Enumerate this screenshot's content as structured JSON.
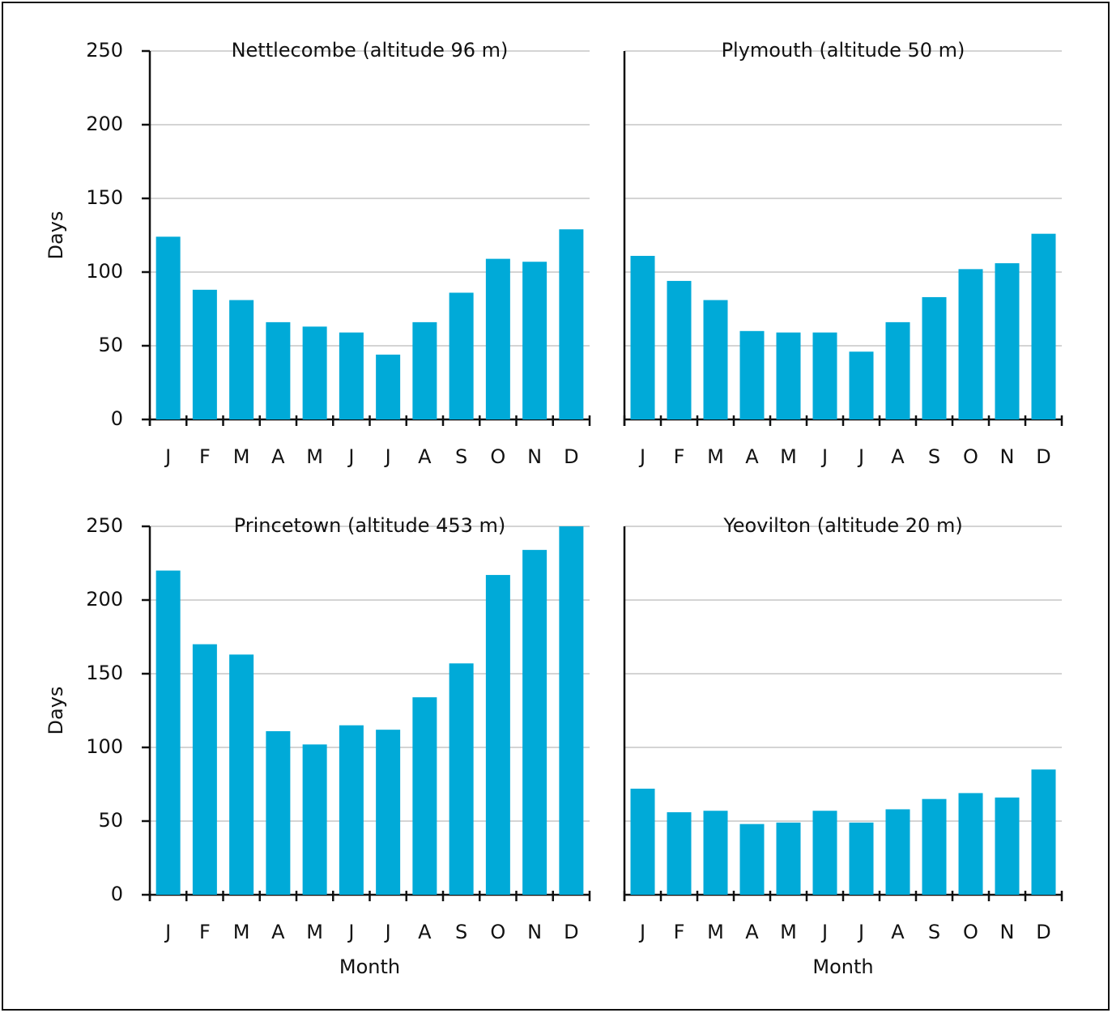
{
  "chart_data": [
    {
      "type": "bar",
      "title": "Nettlecombe (altitude 96 m)",
      "ylabel": "Days",
      "categories": [
        "J",
        "F",
        "M",
        "A",
        "M",
        "J",
        "J",
        "A",
        "S",
        "O",
        "N",
        "D"
      ],
      "values": [
        124,
        88,
        81,
        66,
        63,
        59,
        44,
        66,
        86,
        109,
        107,
        129
      ],
      "color": "#00aad8",
      "ylim": [
        0,
        250
      ],
      "yticks": [
        0,
        50,
        100,
        150,
        200,
        250
      ],
      "grid": true,
      "show_ytick_labels": true
    },
    {
      "type": "bar",
      "title": "Plymouth (altitude 50 m)",
      "categories": [
        "J",
        "F",
        "M",
        "A",
        "M",
        "J",
        "J",
        "A",
        "S",
        "O",
        "N",
        "D"
      ],
      "values": [
        111,
        94,
        81,
        60,
        59,
        59,
        46,
        66,
        83,
        102,
        106,
        126
      ],
      "color": "#00aad8",
      "ylim": [
        0,
        250
      ],
      "yticks": [
        0,
        50,
        100,
        150,
        200,
        250
      ],
      "grid": true,
      "show_ytick_labels": false
    },
    {
      "type": "bar",
      "title": "Princetown (altitude 453 m)",
      "ylabel": "Days",
      "xlabel": "Month",
      "categories": [
        "J",
        "F",
        "M",
        "A",
        "M",
        "J",
        "J",
        "A",
        "S",
        "O",
        "N",
        "D"
      ],
      "values": [
        220,
        170,
        163,
        111,
        102,
        115,
        112,
        134,
        157,
        217,
        234,
        250
      ],
      "color": "#00aad8",
      "ylim": [
        0,
        250
      ],
      "yticks": [
        0,
        50,
        100,
        150,
        200,
        250
      ],
      "grid": true,
      "show_ytick_labels": true
    },
    {
      "type": "bar",
      "title": "Yeovilton (altitude 20 m)",
      "xlabel": "Month",
      "categories": [
        "J",
        "F",
        "M",
        "A",
        "M",
        "J",
        "J",
        "A",
        "S",
        "O",
        "N",
        "D"
      ],
      "values": [
        72,
        56,
        57,
        48,
        49,
        57,
        49,
        58,
        65,
        69,
        66,
        85
      ],
      "color": "#00aad8",
      "ylim": [
        0,
        250
      ],
      "yticks": [
        0,
        50,
        100,
        150,
        200,
        250
      ],
      "grid": true,
      "show_ytick_labels": false
    }
  ]
}
